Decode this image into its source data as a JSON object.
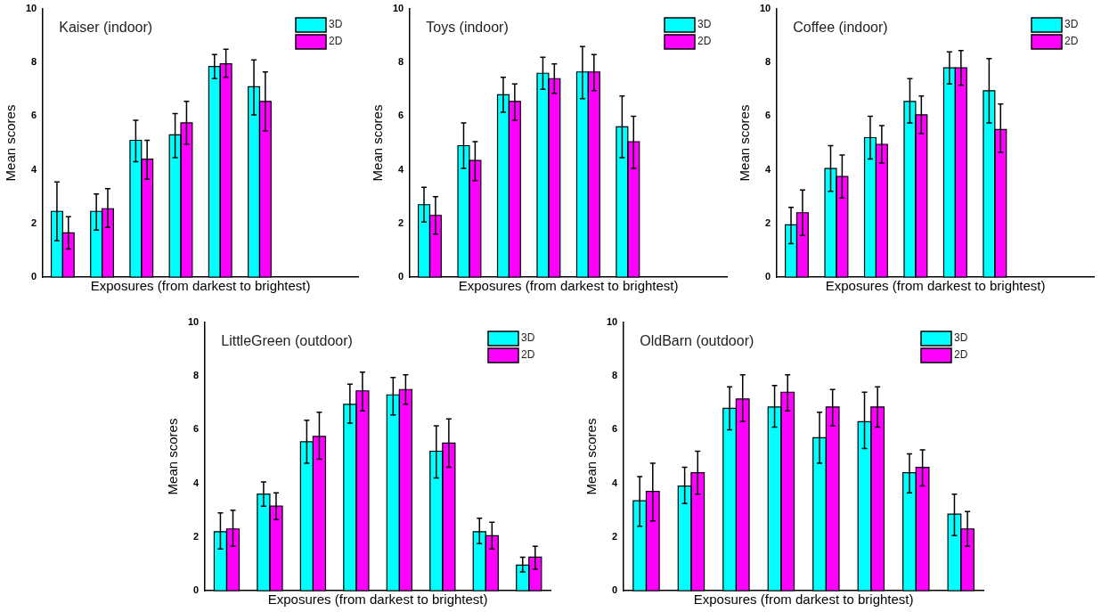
{
  "chart_data": [
    {
      "type": "bar",
      "title": "Kaiser (indoor)",
      "xlabel": "Exposures (from darkest to brightest)",
      "ylabel": "Mean scores",
      "categories": [
        null,
        null,
        null,
        null,
        null,
        null,
        null,
        null
      ],
      "ylim": [
        0,
        10
      ],
      "yticks": [
        0,
        2,
        4,
        6,
        8,
        10
      ],
      "grid": false,
      "legend": "top right",
      "tick_labels": "y",
      "series": [
        {
          "name": "3D",
          "color": "#00ffff",
          "values": [
            2.45,
            2.45,
            5.1,
            5.3,
            7.85,
            7.1,
            0,
            0
          ],
          "errors": [
            [
              1.35,
              3.55
            ],
            [
              1.75,
              3.1
            ],
            [
              4.3,
              5.85
            ],
            [
              4.45,
              6.1
            ],
            [
              7.4,
              8.3
            ],
            [
              6.05,
              8.1
            ],
            null,
            null
          ]
        },
        {
          "name": "2D",
          "color": "#ff00ff",
          "values": [
            1.65,
            2.55,
            4.4,
            5.75,
            7.95,
            6.55,
            0,
            0
          ],
          "errors": [
            [
              1.05,
              2.25
            ],
            [
              1.85,
              3.3
            ],
            [
              3.65,
              5.1
            ],
            [
              4.95,
              6.55
            ],
            [
              7.45,
              8.5
            ],
            [
              5.45,
              7.65
            ],
            null,
            null
          ]
        }
      ]
    },
    {
      "type": "bar",
      "title": "Toys (indoor)",
      "xlabel": "Exposures (from darkest to brightest)",
      "ylabel": "Mean scores",
      "categories": [
        null,
        null,
        null,
        null,
        null,
        null,
        null,
        null
      ],
      "ylim": [
        0,
        10
      ],
      "yticks": [
        0,
        2,
        4,
        6,
        8,
        10
      ],
      "grid": false,
      "legend": "top right",
      "tick_labels": "y",
      "series": [
        {
          "name": "3D",
          "color": "#00ffff",
          "values": [
            2.7,
            4.9,
            6.8,
            7.6,
            7.65,
            5.6,
            0,
            0
          ],
          "errors": [
            [
              2.05,
              3.35
            ],
            [
              4.05,
              5.75
            ],
            [
              6.15,
              7.45
            ],
            [
              7.0,
              8.2
            ],
            [
              6.65,
              8.6
            ],
            [
              4.45,
              6.75
            ],
            null,
            null
          ]
        },
        {
          "name": "2D",
          "color": "#ff00ff",
          "values": [
            2.3,
            4.35,
            6.55,
            7.4,
            7.65,
            5.05,
            0,
            0
          ],
          "errors": [
            [
              1.6,
              3.0
            ],
            [
              3.6,
              5.05
            ],
            [
              5.85,
              7.2
            ],
            [
              6.85,
              7.95
            ],
            [
              6.95,
              8.3
            ],
            [
              4.05,
              6.0
            ],
            null,
            null
          ]
        }
      ]
    },
    {
      "type": "bar",
      "title": "Coffee (indoor)",
      "xlabel": "Exposures (from darkest to brightest)",
      "ylabel": "Mean scores",
      "categories": [
        null,
        null,
        null,
        null,
        null,
        null,
        null,
        null
      ],
      "ylim": [
        0,
        10
      ],
      "yticks": [
        0,
        2,
        4,
        6,
        8,
        10
      ],
      "grid": false,
      "legend": "top right",
      "tick_labels": "y",
      "series": [
        {
          "name": "3D",
          "color": "#00ffff",
          "values": [
            1.95,
            4.05,
            5.2,
            6.55,
            7.8,
            6.95,
            null,
            null
          ],
          "errors": [
            [
              1.25,
              2.6
            ],
            [
              3.2,
              4.9
            ],
            [
              4.4,
              6.0
            ],
            [
              5.75,
              7.4
            ],
            [
              7.2,
              8.4
            ],
            [
              5.75,
              8.15
            ],
            null,
            null
          ]
        },
        {
          "name": "2D",
          "color": "#ff00ff",
          "values": [
            2.4,
            3.75,
            4.95,
            6.05,
            7.8,
            5.5,
            null,
            null
          ],
          "errors": [
            [
              1.55,
              3.25
            ],
            [
              2.95,
              4.55
            ],
            [
              4.25,
              5.65
            ],
            [
              5.35,
              6.75
            ],
            [
              7.15,
              8.45
            ],
            [
              4.65,
              6.45
            ],
            null,
            null
          ]
        }
      ]
    },
    {
      "type": "bar",
      "title": "LittleGreen (outdoor)",
      "xlabel": "Exposures (from darkest to brightest)",
      "ylabel": "Mean scores",
      "categories": [
        null,
        null,
        null,
        null,
        null,
        null,
        null,
        null
      ],
      "ylim": [
        0,
        10
      ],
      "yticks": [
        0,
        2,
        4,
        6,
        8,
        10
      ],
      "grid": false,
      "legend": "top right",
      "tick_labels": "y",
      "series": [
        {
          "name": "3D",
          "color": "#00ffff",
          "values": [
            2.2,
            3.6,
            5.55,
            6.95,
            7.3,
            5.2,
            2.2,
            0.95
          ],
          "errors": [
            [
              1.55,
              2.9
            ],
            [
              3.15,
              4.05
            ],
            [
              4.75,
              6.35
            ],
            [
              6.25,
              7.7
            ],
            [
              6.55,
              7.95
            ],
            [
              4.2,
              6.15
            ],
            [
              1.75,
              2.7
            ],
            [
              0.7,
              1.25
            ]
          ]
        },
        {
          "name": "2D",
          "color": "#ff00ff",
          "values": [
            2.3,
            3.15,
            5.75,
            7.45,
            7.5,
            5.5,
            2.05,
            1.25
          ],
          "errors": [
            [
              1.65,
              3.0
            ],
            [
              2.65,
              3.65
            ],
            [
              4.9,
              6.65
            ],
            [
              6.7,
              8.15
            ],
            [
              6.95,
              8.05
            ],
            [
              4.6,
              6.4
            ],
            [
              1.55,
              2.55
            ],
            [
              0.8,
              1.65
            ]
          ]
        }
      ]
    },
    {
      "type": "bar",
      "title": "OldBarn (outdoor)",
      "xlabel": "Exposures (from darkest to brightest)",
      "ylabel": "Mean scores",
      "categories": [
        null,
        null,
        null,
        null,
        null,
        null,
        null,
        null
      ],
      "ylim": [
        0,
        10
      ],
      "yticks": [
        0,
        2,
        4,
        6,
        8,
        10
      ],
      "grid": false,
      "legend": "top right",
      "tick_labels": "y",
      "series": [
        {
          "name": "3D",
          "color": "#00ffff",
          "values": [
            3.35,
            3.9,
            6.8,
            6.85,
            5.7,
            6.3,
            4.4,
            2.85
          ],
          "errors": [
            [
              2.4,
              4.25
            ],
            [
              3.25,
              4.6
            ],
            [
              6.0,
              7.6
            ],
            [
              6.1,
              7.65
            ],
            [
              4.75,
              6.65
            ],
            [
              5.3,
              7.4
            ],
            [
              3.65,
              5.1
            ],
            [
              2.05,
              3.6
            ]
          ]
        },
        {
          "name": "2D",
          "color": "#ff00ff",
          "values": [
            3.7,
            4.4,
            7.15,
            7.4,
            6.85,
            6.85,
            4.6,
            2.3
          ],
          "errors": [
            [
              2.6,
              4.75
            ],
            [
              3.6,
              5.2
            ],
            [
              6.3,
              8.05
            ],
            [
              6.7,
              8.05
            ],
            [
              6.15,
              7.5
            ],
            [
              6.1,
              7.6
            ],
            [
              3.9,
              5.25
            ],
            [
              1.65,
              2.95
            ]
          ]
        }
      ]
    }
  ]
}
